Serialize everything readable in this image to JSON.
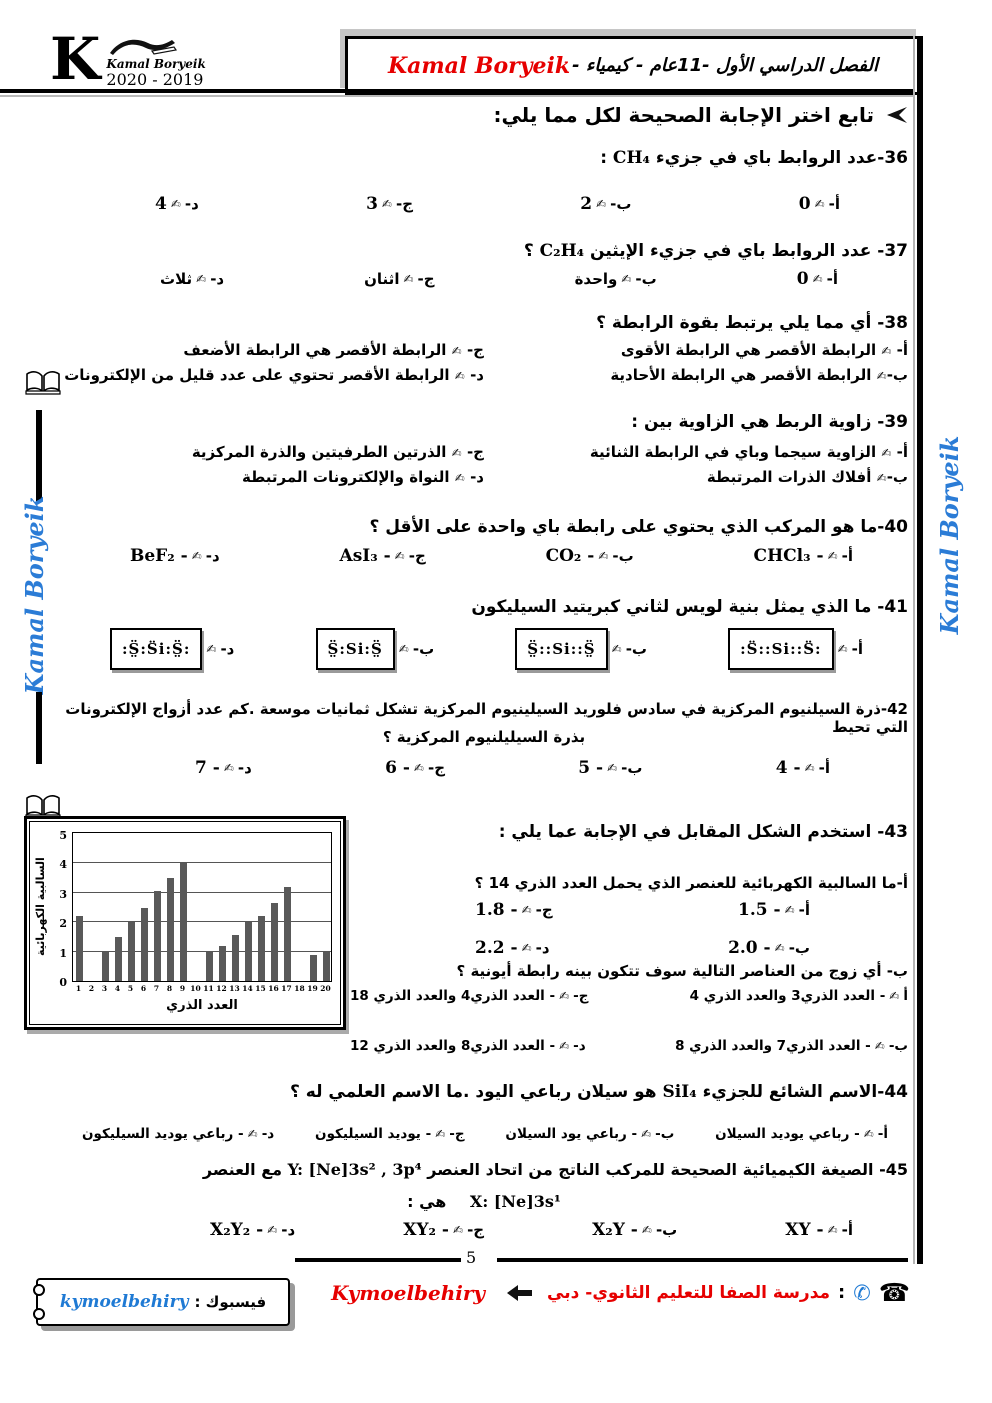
{
  "colors": {
    "red": "#e60000",
    "blue": "#1f7ad4",
    "bar": "#595959"
  },
  "icons": {
    "pen": "✍",
    "phone": "☎",
    "phone_circle": "✆"
  },
  "watermark": "Kamal Boryeik",
  "header": {
    "logo": {
      "monogram": "K",
      "name": "Kamal Boryeik",
      "years": "2020 - 2019"
    },
    "title_brand": "Kamal Boryeik",
    "title_rest": "- الفصل الدراسي الأول -11عام - كيمياء"
  },
  "intro": "تابع  اختر الإجابة الصحيحة لكل مما يلي:",
  "q36": {
    "text": "36-عدد الروابط باي في جزيء",
    "formula": "CH₄",
    "tail": ":",
    "options": [
      {
        "label": "أ-",
        "value": "0"
      },
      {
        "label": "ب-",
        "value": "2"
      },
      {
        "label": "ج-",
        "value": "3"
      },
      {
        "label": "د-",
        "value": "4"
      }
    ]
  },
  "q37": {
    "text": "37- عدد الروابط باي في جزيء الإيثين",
    "formula": "C₂H₄",
    "tail": "؟",
    "options": [
      {
        "label": "أ-",
        "value": "0"
      },
      {
        "label": "ب-",
        "value": "واحدة"
      },
      {
        "label": "ج-",
        "value": "اثنان"
      },
      {
        "label": "د-",
        "value": "ثلاث"
      }
    ]
  },
  "q38": {
    "text": "38-  أي مما يلي يرتبط بقوة الرابطة ؟",
    "options": [
      {
        "label": "أ-",
        "value": "الرابطة الأقصر هي الرابطة الأقوى"
      },
      {
        "label": "ب-",
        "value": "الرابطة الأقصر هي الرابطة الأحادية"
      },
      {
        "label": "ج-",
        "value": "الرابطة الأقصر هي الرابطة الأضعف"
      },
      {
        "label": "د-",
        "value": "الرابطة الأقصر تحتوي على عدد قليل من الإلكترونات"
      }
    ]
  },
  "q39": {
    "text": "39- زاوية الربط هي الزاوية بين :",
    "options": [
      {
        "label": "أ-",
        "value": "الزاوية سيجما وباي في الرابطة الثنائية"
      },
      {
        "label": "ب-",
        "value": "أفلاك الذرات المرتبطة"
      },
      {
        "label": "ج-",
        "value": "الذرتين الطرفيتين والذرة المركزية"
      },
      {
        "label": "د-",
        "value": "النواة والإلكترونات المرتبطة"
      }
    ]
  },
  "q40": {
    "text": "40-ما هو المركب الذي يحتوي على رابطة باي واحدة على الأقل ؟",
    "options": [
      {
        "label": "أ-",
        "value": "- CHCl₃"
      },
      {
        "label": "ب-",
        "value": "- CO₂"
      },
      {
        "label": "ج-",
        "value": "- AsI₃"
      },
      {
        "label": "د-",
        "value": "- BeF₂"
      }
    ]
  },
  "q41": {
    "text": "41- ما الذي يمثل بنية لويس لثاني كبريتيد السيليكون",
    "options": [
      {
        "label": "أ-",
        "lewis": ":S̈::Si::S̈:"
      },
      {
        "label": "ب-",
        "lewis": "S̤̈::Si::S̤̈"
      },
      {
        "label": "ب-",
        "lewis": "S̤̈:Si:S̤̈"
      },
      {
        "label": "د-",
        "lewis": ":S̤̈:S̈i:S̤̈:"
      }
    ]
  },
  "q42": {
    "line1": "42-ذرة السيلنيوم المركزية في سادس فلوريد السيلينيوم المركزية تشكل ثمانيات موسعة .كم عدد أزواج الإلكترونات التي تحيط",
    "line2": "بذرة السيليلنيوم المركزية ؟",
    "options": [
      {
        "label": "أ-",
        "value": "- 4"
      },
      {
        "label": "ب-",
        "value": "- 5"
      },
      {
        "label": "ج-",
        "value": "- 6"
      },
      {
        "label": "د-",
        "value": "- 7"
      }
    ]
  },
  "q43": {
    "text": "43- استخدم الشكل المقابل في الإجابة عما يلي :",
    "part_a": "أ-ما السالبية الكهربائية للعنصر الذي يحمل العدد الذري 14 ؟",
    "a_options": [
      {
        "label": "أ-",
        "value": "- 1.5"
      },
      {
        "label": "ج-",
        "value": "- 1.8"
      },
      {
        "label": "ب-",
        "value": "- 2.0"
      },
      {
        "label": "د-",
        "value": "- 2.2"
      }
    ],
    "part_b": "ب- أي زوج من العناصر التالية سوف تتكون بينه رابطة أيونية ؟",
    "b_options": [
      {
        "label": "أ",
        "value": "- العدد الذري3 والعدد الذري 4"
      },
      {
        "label": "ج-",
        "value": "- العدد الذري4 والعدد الذري 18"
      },
      {
        "label": "ب-",
        "value": "- العدد الذري7 والعدد الذري 8"
      },
      {
        "label": "د-",
        "value": "- العدد الذري8 والعدد الذري 12"
      }
    ]
  },
  "q44": {
    "pre": "44-الاسم الشائع للجزيء",
    "formula": "SiI₄",
    "post": "هو سيلان رباعي اليود .ما الاسم العلمي له ؟",
    "options": [
      {
        "label": "أ-",
        "value": "- رباعي يوديد السيلان"
      },
      {
        "label": "ب-",
        "value": "- رباعي يود السيلان"
      },
      {
        "label": "ج-",
        "value": "- يوديد السيليكون"
      },
      {
        "label": "د-",
        "value": "- رباعي يوديد السيليكون"
      }
    ]
  },
  "q45": {
    "pre": "45- الصيغة الكيميائية الصحيحة للمركب الناتج من اتحاد العنصر",
    "latin1": "Y: [Ne]3s² , 3p⁴",
    "mid": "مع العنصر",
    "latin2": "X: [Ne]3s¹",
    "tail": "هي :",
    "options": [
      {
        "label": "أ-",
        "value": "- XY"
      },
      {
        "label": "ب-",
        "value": "- X₂Y"
      },
      {
        "label": "ج-",
        "value": "- XY₂"
      },
      {
        "label": "د-",
        "value": "- X₂Y₂"
      }
    ]
  },
  "chart_data": {
    "type": "bar",
    "x": [
      1,
      2,
      3,
      4,
      5,
      6,
      7,
      8,
      9,
      10,
      11,
      12,
      13,
      14,
      15,
      16,
      17,
      18,
      19,
      20
    ],
    "values": [
      2.2,
      0,
      1.0,
      1.5,
      2.0,
      2.5,
      3.05,
      3.5,
      4.0,
      0,
      1.0,
      1.2,
      1.55,
      2.0,
      2.2,
      2.65,
      3.2,
      0,
      0.9,
      1.0
    ],
    "xlabel": "العدد الذري",
    "ylabel": "السالبية الكهربائية",
    "ylim": [
      0,
      5
    ],
    "yticks": [
      0,
      1,
      2,
      3,
      4,
      5
    ],
    "grid": true,
    "bar_color": "#595959"
  },
  "footer": {
    "page": "5",
    "colon": ":",
    "school": "مدرسة الصفا للتعليم الثانوي- دبي",
    "brand": "Kymoelbehiry",
    "fb_label": "فيسبوك :",
    "fb_handle": "kymoelbehiry"
  }
}
